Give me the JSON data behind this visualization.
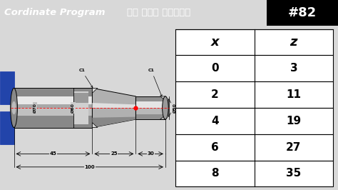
{
  "title_text": "Cordinate Program एक साथ सीखें",
  "title_num": "#82",
  "bg_color": "#d8d8d8",
  "header_bg": "#dd0000",
  "header_text_color": "#ffffff",
  "table_headers": [
    "x",
    "z"
  ],
  "table_rows": [
    [
      0,
      3
    ],
    [
      2,
      11
    ],
    [
      4,
      19
    ],
    [
      6,
      27
    ],
    [
      8,
      35
    ]
  ]
}
